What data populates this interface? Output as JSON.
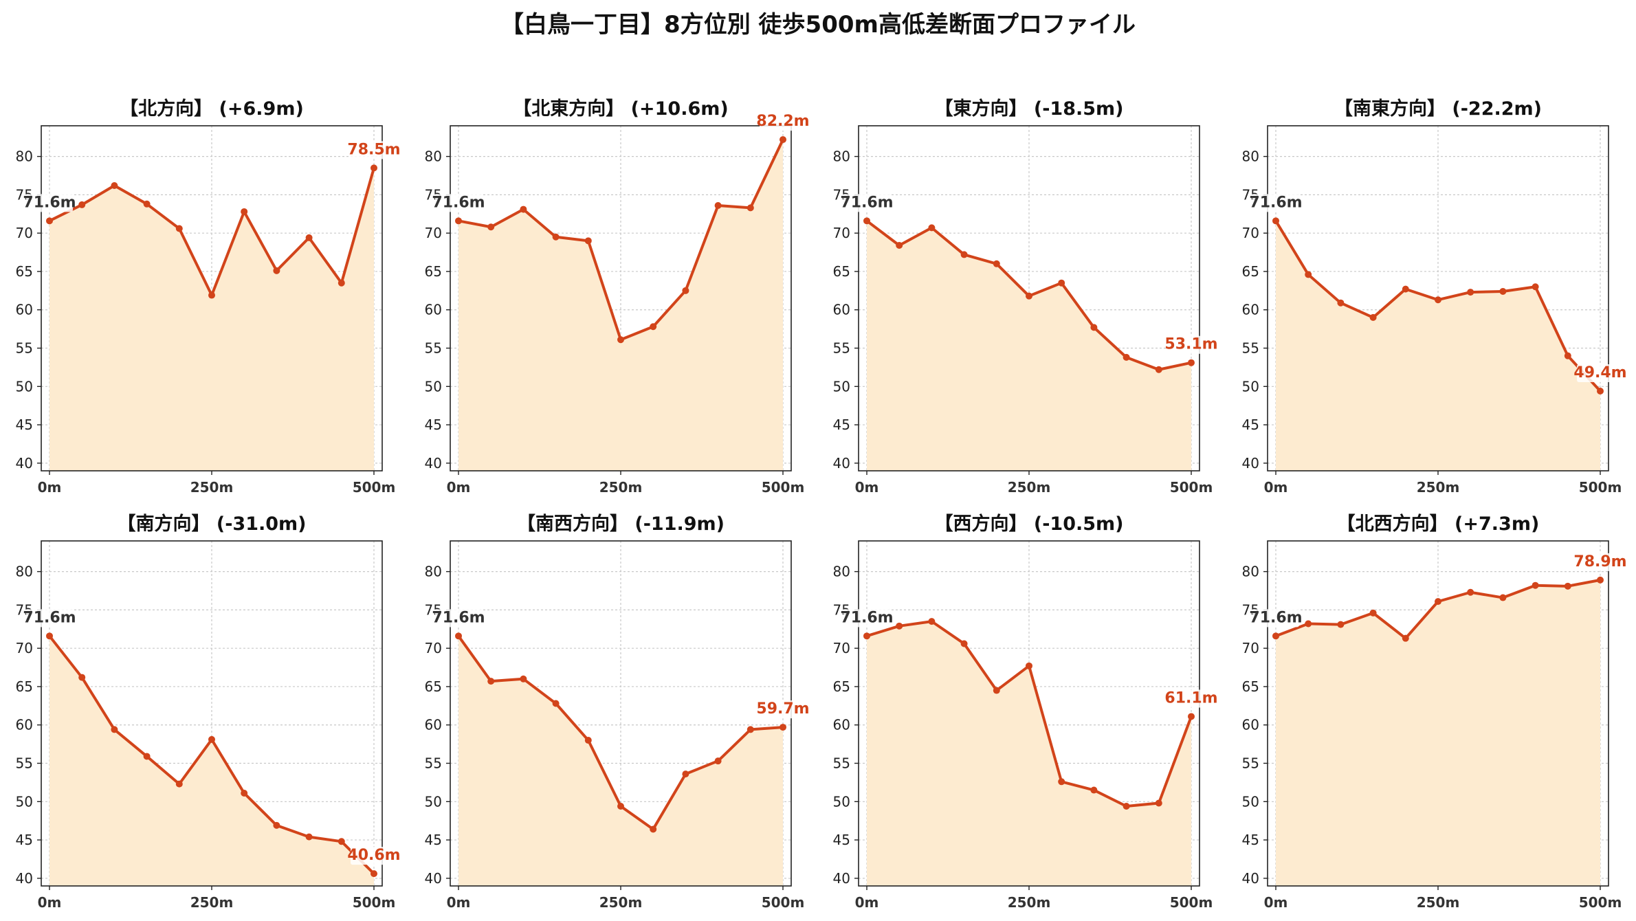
{
  "title": "【白鳥一丁目】8方位別 徒歩500m高低差断面プロファイル",
  "colors": {
    "line": "#d2441a",
    "fill": "#fdebd0",
    "grid": "#c8c8c8",
    "start_label": "#333333",
    "end_label": "#d2441a"
  },
  "chart_data": [
    {
      "type": "area",
      "title": "【北方向】 (+6.9m)",
      "x": [
        0,
        50,
        100,
        150,
        200,
        250,
        300,
        350,
        400,
        450,
        500
      ],
      "y": [
        71.6,
        73.7,
        76.2,
        73.8,
        70.6,
        61.9,
        72.8,
        65.1,
        69.4,
        63.5,
        78.5
      ],
      "xticks": [
        "0m",
        "250m",
        "500m"
      ],
      "ylim": [
        39,
        84
      ],
      "yticks": [
        40,
        45,
        50,
        55,
        60,
        65,
        70,
        75,
        80
      ],
      "start_label": "71.6m",
      "end_label": "78.5m",
      "grid": true
    },
    {
      "type": "area",
      "title": "【北東方向】 (+10.6m)",
      "x": [
        0,
        50,
        100,
        150,
        200,
        250,
        300,
        350,
        400,
        450,
        500
      ],
      "y": [
        71.6,
        70.8,
        73.1,
        69.5,
        69.0,
        56.1,
        57.8,
        62.5,
        73.6,
        73.3,
        82.2
      ],
      "xticks": [
        "0m",
        "250m",
        "500m"
      ],
      "ylim": [
        39,
        84
      ],
      "yticks": [
        40,
        45,
        50,
        55,
        60,
        65,
        70,
        75,
        80
      ],
      "start_label": "71.6m",
      "end_label": "82.2m",
      "grid": true
    },
    {
      "type": "area",
      "title": "【東方向】 (-18.5m)",
      "x": [
        0,
        50,
        100,
        150,
        200,
        250,
        300,
        350,
        400,
        450,
        500
      ],
      "y": [
        71.6,
        68.4,
        70.7,
        67.2,
        66.0,
        61.8,
        63.5,
        57.7,
        53.8,
        52.2,
        53.1
      ],
      "xticks": [
        "0m",
        "250m",
        "500m"
      ],
      "ylim": [
        39,
        84
      ],
      "yticks": [
        40,
        45,
        50,
        55,
        60,
        65,
        70,
        75,
        80
      ],
      "start_label": "71.6m",
      "end_label": "53.1m",
      "grid": true
    },
    {
      "type": "area",
      "title": "【南東方向】 (-22.2m)",
      "x": [
        0,
        50,
        100,
        150,
        200,
        250,
        300,
        350,
        400,
        450,
        500
      ],
      "y": [
        71.6,
        64.6,
        60.9,
        59.0,
        62.7,
        61.3,
        62.3,
        62.4,
        63.0,
        54.0,
        49.4
      ],
      "xticks": [
        "0m",
        "250m",
        "500m"
      ],
      "ylim": [
        39,
        84
      ],
      "yticks": [
        40,
        45,
        50,
        55,
        60,
        65,
        70,
        75,
        80
      ],
      "start_label": "71.6m",
      "end_label": "49.4m",
      "grid": true
    },
    {
      "type": "area",
      "title": "【南方向】 (-31.0m)",
      "x": [
        0,
        50,
        100,
        150,
        200,
        250,
        300,
        350,
        400,
        450,
        500
      ],
      "y": [
        71.6,
        66.2,
        59.4,
        55.9,
        52.3,
        58.1,
        51.1,
        46.9,
        45.4,
        44.8,
        40.6
      ],
      "xticks": [
        "0m",
        "250m",
        "500m"
      ],
      "ylim": [
        39,
        84
      ],
      "yticks": [
        40,
        45,
        50,
        55,
        60,
        65,
        70,
        75,
        80
      ],
      "start_label": "71.6m",
      "end_label": "40.6m",
      "grid": true
    },
    {
      "type": "area",
      "title": "【南西方向】 (-11.9m)",
      "x": [
        0,
        50,
        100,
        150,
        200,
        250,
        300,
        350,
        400,
        450,
        500
      ],
      "y": [
        71.6,
        65.7,
        66.0,
        62.8,
        58.0,
        49.4,
        46.4,
        53.6,
        55.3,
        59.4,
        59.7
      ],
      "xticks": [
        "0m",
        "250m",
        "500m"
      ],
      "ylim": [
        39,
        84
      ],
      "yticks": [
        40,
        45,
        50,
        55,
        60,
        65,
        70,
        75,
        80
      ],
      "start_label": "71.6m",
      "end_label": "59.7m",
      "grid": true
    },
    {
      "type": "area",
      "title": "【西方向】 (-10.5m)",
      "x": [
        0,
        50,
        100,
        150,
        200,
        250,
        300,
        350,
        400,
        450,
        500
      ],
      "y": [
        71.6,
        72.9,
        73.5,
        70.6,
        64.5,
        67.7,
        52.6,
        51.5,
        49.4,
        49.8,
        61.1
      ],
      "xticks": [
        "0m",
        "250m",
        "500m"
      ],
      "ylim": [
        39,
        84
      ],
      "yticks": [
        40,
        45,
        50,
        55,
        60,
        65,
        70,
        75,
        80
      ],
      "start_label": "71.6m",
      "end_label": "61.1m",
      "grid": true
    },
    {
      "type": "area",
      "title": "【北西方向】 (+7.3m)",
      "x": [
        0,
        50,
        100,
        150,
        200,
        250,
        300,
        350,
        400,
        450,
        500
      ],
      "y": [
        71.6,
        73.2,
        73.1,
        74.6,
        71.3,
        76.1,
        77.3,
        76.6,
        78.2,
        78.1,
        78.9
      ],
      "xticks": [
        "0m",
        "250m",
        "500m"
      ],
      "ylim": [
        39,
        84
      ],
      "yticks": [
        40,
        45,
        50,
        55,
        60,
        65,
        70,
        75,
        80
      ],
      "start_label": "71.6m",
      "end_label": "78.9m",
      "grid": true
    }
  ]
}
